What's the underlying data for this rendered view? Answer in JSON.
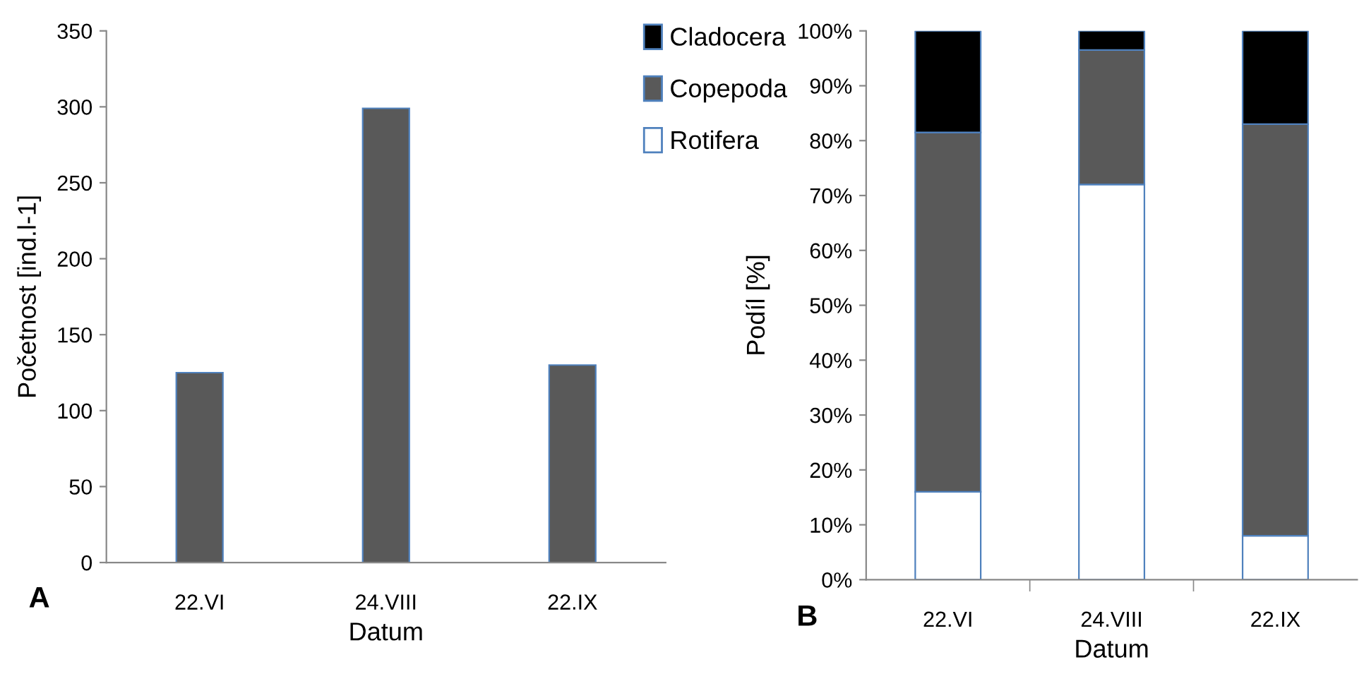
{
  "chart_data": [
    {
      "type": "bar",
      "categories": [
        "22.VI",
        "24.VIII",
        "22.IX"
      ],
      "values": [
        125,
        299,
        130
      ],
      "color": "#595959",
      "xlabel": "Datum",
      "ylabel": "Početnost [ind.l-1]",
      "ylim": [
        0,
        350
      ],
      "yticks": [
        0,
        50,
        100,
        150,
        200,
        250,
        300,
        350
      ],
      "annotations": [
        "A"
      ],
      "legend": false,
      "grid": false
    },
    {
      "type": "bar",
      "stacked": true,
      "categories": [
        "22.VI",
        "24.VIII",
        "22.IX"
      ],
      "xlabel": "Datum",
      "ylabel": "Podíl [%]",
      "ylim": [
        0,
        100
      ],
      "yticks": [
        {
          "value": 0,
          "label": "0%"
        },
        {
          "value": 10,
          "label": "10%"
        },
        {
          "value": 20,
          "label": "20%"
        },
        {
          "value": 30,
          "label": "30%"
        },
        {
          "value": 40,
          "label": "40%"
        },
        {
          "value": 50,
          "label": "50%"
        },
        {
          "value": 60,
          "label": "60%"
        },
        {
          "value": 70,
          "label": "70%"
        },
        {
          "value": 80,
          "label": "80%"
        },
        {
          "value": 90,
          "label": "90%"
        },
        {
          "value": 100,
          "label": "100%"
        }
      ],
      "annotations": [
        "B"
      ],
      "legend": "left",
      "grid": false,
      "series": [
        {
          "name": "Rotifera",
          "color": "#ffffff",
          "values": [
            16,
            72,
            8
          ]
        },
        {
          "name": "Copepoda",
          "color": "#595959",
          "values": [
            65.5,
            24.5,
            75
          ]
        },
        {
          "name": "Cladocera",
          "color": "#000000",
          "values": [
            18.5,
            3.5,
            17
          ]
        }
      ]
    }
  ]
}
